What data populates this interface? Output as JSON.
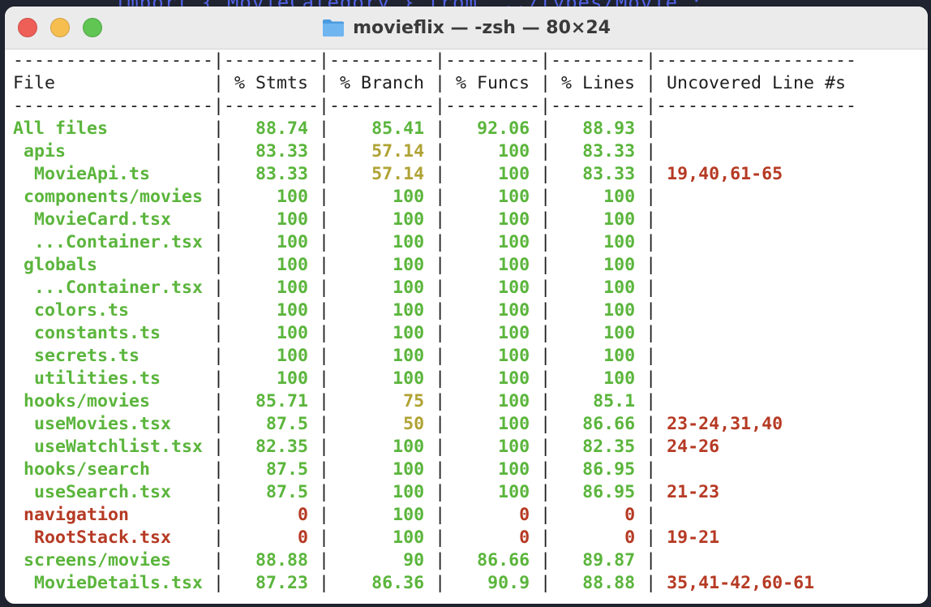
{
  "window": {
    "title": "movieflix — -zsh — 80×24",
    "background_code": "  import { MovieCategory } from '../types/Movie';"
  },
  "traffic_lights": {
    "close": "close",
    "minimize": "minimize",
    "maximize": "maximize"
  },
  "table": {
    "divider": "-------------------|---------|----------|---------|---------|-------------------",
    "header": "File               | % Stmts | % Branch | % Funcs | % Lines | Uncovered Line #s ",
    "columns": [
      "File",
      "% Stmts",
      "% Branch",
      "% Funcs",
      "% Lines",
      "Uncovered Line #s"
    ],
    "rows": [
      {
        "file": "All files",
        "indent": 0,
        "stmts": "88.74",
        "branch": "85.41",
        "funcs": "92.06",
        "lines": "88.93",
        "uncovered": "",
        "colors": [
          "g",
          "g",
          "g",
          "g",
          "g",
          "r"
        ]
      },
      {
        "file": "apis",
        "indent": 1,
        "stmts": "83.33",
        "branch": "57.14",
        "funcs": "100",
        "lines": "83.33",
        "uncovered": "",
        "colors": [
          "g",
          "g",
          "y",
          "g",
          "g",
          "r"
        ]
      },
      {
        "file": "MovieApi.ts",
        "indent": 2,
        "stmts": "83.33",
        "branch": "57.14",
        "funcs": "100",
        "lines": "83.33",
        "uncovered": "19,40,61-65",
        "colors": [
          "g",
          "g",
          "y",
          "g",
          "g",
          "r"
        ]
      },
      {
        "file": "components/movies",
        "indent": 1,
        "stmts": "100",
        "branch": "100",
        "funcs": "100",
        "lines": "100",
        "uncovered": "",
        "colors": [
          "g",
          "g",
          "g",
          "g",
          "g",
          "r"
        ]
      },
      {
        "file": "MovieCard.tsx",
        "indent": 2,
        "stmts": "100",
        "branch": "100",
        "funcs": "100",
        "lines": "100",
        "uncovered": "",
        "colors": [
          "g",
          "g",
          "g",
          "g",
          "g",
          "r"
        ]
      },
      {
        "file": "...Container.tsx",
        "indent": 2,
        "stmts": "100",
        "branch": "100",
        "funcs": "100",
        "lines": "100",
        "uncovered": "",
        "colors": [
          "g",
          "g",
          "g",
          "g",
          "g",
          "r"
        ]
      },
      {
        "file": "globals",
        "indent": 1,
        "stmts": "100",
        "branch": "100",
        "funcs": "100",
        "lines": "100",
        "uncovered": "",
        "colors": [
          "g",
          "g",
          "g",
          "g",
          "g",
          "r"
        ]
      },
      {
        "file": "...Container.tsx",
        "indent": 2,
        "stmts": "100",
        "branch": "100",
        "funcs": "100",
        "lines": "100",
        "uncovered": "",
        "colors": [
          "g",
          "g",
          "g",
          "g",
          "g",
          "r"
        ]
      },
      {
        "file": "colors.ts",
        "indent": 2,
        "stmts": "100",
        "branch": "100",
        "funcs": "100",
        "lines": "100",
        "uncovered": "",
        "colors": [
          "g",
          "g",
          "g",
          "g",
          "g",
          "r"
        ]
      },
      {
        "file": "constants.ts",
        "indent": 2,
        "stmts": "100",
        "branch": "100",
        "funcs": "100",
        "lines": "100",
        "uncovered": "",
        "colors": [
          "g",
          "g",
          "g",
          "g",
          "g",
          "r"
        ]
      },
      {
        "file": "secrets.ts",
        "indent": 2,
        "stmts": "100",
        "branch": "100",
        "funcs": "100",
        "lines": "100",
        "uncovered": "",
        "colors": [
          "g",
          "g",
          "g",
          "g",
          "g",
          "r"
        ]
      },
      {
        "file": "utilities.ts",
        "indent": 2,
        "stmts": "100",
        "branch": "100",
        "funcs": "100",
        "lines": "100",
        "uncovered": "",
        "colors": [
          "g",
          "g",
          "g",
          "g",
          "g",
          "r"
        ]
      },
      {
        "file": "hooks/movies",
        "indent": 1,
        "stmts": "85.71",
        "branch": "75",
        "funcs": "100",
        "lines": "85.1",
        "uncovered": "",
        "colors": [
          "g",
          "g",
          "y",
          "g",
          "g",
          "r"
        ]
      },
      {
        "file": "useMovies.tsx",
        "indent": 2,
        "stmts": "87.5",
        "branch": "50",
        "funcs": "100",
        "lines": "86.66",
        "uncovered": "23-24,31,40",
        "colors": [
          "g",
          "g",
          "y",
          "g",
          "g",
          "r"
        ]
      },
      {
        "file": "useWatchlist.tsx",
        "indent": 2,
        "stmts": "82.35",
        "branch": "100",
        "funcs": "100",
        "lines": "82.35",
        "uncovered": "24-26",
        "colors": [
          "g",
          "g",
          "g",
          "g",
          "g",
          "r"
        ]
      },
      {
        "file": "hooks/search",
        "indent": 1,
        "stmts": "87.5",
        "branch": "100",
        "funcs": "100",
        "lines": "86.95",
        "uncovered": "",
        "colors": [
          "g",
          "g",
          "g",
          "g",
          "g",
          "r"
        ]
      },
      {
        "file": "useSearch.tsx",
        "indent": 2,
        "stmts": "87.5",
        "branch": "100",
        "funcs": "100",
        "lines": "86.95",
        "uncovered": "21-23",
        "colors": [
          "g",
          "g",
          "g",
          "g",
          "g",
          "r"
        ]
      },
      {
        "file": "navigation",
        "indent": 1,
        "stmts": "0",
        "branch": "100",
        "funcs": "0",
        "lines": "0",
        "uncovered": "",
        "colors": [
          "r",
          "r",
          "g",
          "r",
          "r",
          "r"
        ]
      },
      {
        "file": "RootStack.tsx",
        "indent": 2,
        "stmts": "0",
        "branch": "100",
        "funcs": "0",
        "lines": "0",
        "uncovered": "19-21",
        "colors": [
          "r",
          "r",
          "g",
          "r",
          "r",
          "r"
        ]
      },
      {
        "file": "screens/movies",
        "indent": 1,
        "stmts": "88.88",
        "branch": "90",
        "funcs": "86.66",
        "lines": "89.87",
        "uncovered": "",
        "colors": [
          "g",
          "g",
          "g",
          "g",
          "g",
          "r"
        ]
      },
      {
        "file": "MovieDetails.tsx",
        "indent": 2,
        "stmts": "87.23",
        "branch": "86.36",
        "funcs": "90.9",
        "lines": "88.88",
        "uncovered": "35,41-42,60-61",
        "colors": [
          "g",
          "g",
          "g",
          "g",
          "g",
          "r"
        ]
      }
    ]
  },
  "colors": {
    "covered": "#5bb53c",
    "partial": "#b0a335",
    "uncovered": "#b63a24"
  }
}
